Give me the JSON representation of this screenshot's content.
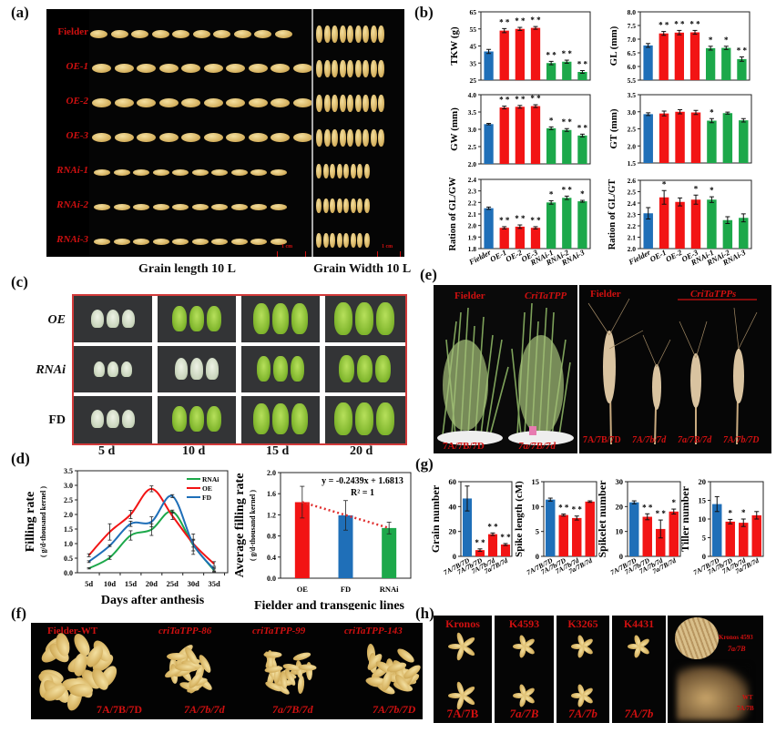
{
  "panels": {
    "a": {
      "label": "(a)",
      "rows": [
        "Fielder",
        "OE-1",
        "OE-2",
        "OE-3",
        "RNAi-1",
        "RNAi-2",
        "RNAi-3"
      ],
      "scale_bar": "1 cm",
      "caption_length": "Grain length  10 L",
      "caption_width": "Grain Width  10 L"
    },
    "b": {
      "label": "(b)"
    },
    "c": {
      "label": "(c)",
      "rows": [
        "OE",
        "RNAi",
        "FD"
      ],
      "columns": [
        "5 d",
        "10 d",
        "15 d",
        "20 d"
      ]
    },
    "d": {
      "label": "(d)"
    },
    "e": {
      "label": "(e)",
      "left_labels": [
        "Fielder",
        "CriTaTPP"
      ],
      "left_genotypes": [
        "7A/7B/7D",
        "7a/7B/7d"
      ],
      "right_labels": [
        "Fielder",
        "CriTaTPPs"
      ],
      "right_genotypes": [
        "7A/7B/7D",
        "7A/7b/7d",
        "7a/7B/7d",
        "7A/7b/7D"
      ]
    },
    "f": {
      "label": "(f)",
      "lines": [
        "Fielder-WT",
        "criTaTPP-86",
        "criTaTPP-99",
        "criTaTPP-143"
      ],
      "genotypes": [
        "7A/7B/7D",
        "7A/7b/7d",
        "7a/7B/7d",
        "7A/7b/7D"
      ]
    },
    "g": {
      "label": "(g)"
    },
    "h": {
      "label": "(h)",
      "lines": [
        "Kronos",
        "K4593",
        "K3265",
        "K4431"
      ],
      "genotypes": [
        "7A/7B",
        "7a/7B",
        "7A/7b",
        "7A/7b"
      ],
      "inset_label_1": "Kronos 4593",
      "inset_label_2": "7a/7B",
      "inset_label_3": "WT",
      "inset_label_4": "7A/7B"
    }
  },
  "colors": {
    "fielder": "#1f6fb8",
    "oe": "#f21414",
    "rnai": "#1ca84a",
    "accent_red": "#d01010"
  },
  "chart_data": [
    {
      "id": "b-TKW",
      "type": "bar",
      "ylabel": "TKW (g)",
      "ylim": [
        25,
        65
      ],
      "yticks": [
        25,
        35,
        45,
        55,
        65
      ],
      "categories": [
        "Fielder",
        "OE-1",
        "OE-2",
        "OE-3",
        "RNAi-1",
        "RNAi-2",
        "RNAi-3"
      ],
      "values": [
        41.8,
        54.0,
        55.0,
        55.6,
        35.0,
        35.8,
        29.8
      ],
      "errors": [
        1.2,
        1.2,
        0.9,
        0.8,
        1.0,
        0.9,
        0.8
      ],
      "significance": [
        "",
        "**",
        "**",
        "**",
        "**",
        "**",
        "**"
      ]
    },
    {
      "id": "b-GL",
      "type": "bar",
      "ylabel": "GL (mm)",
      "ylim": [
        5.5,
        8.0
      ],
      "yticks": [
        5.5,
        6.0,
        6.5,
        7.0,
        7.5,
        8.0
      ],
      "categories": [
        "Fielder",
        "OE-1",
        "OE-2",
        "OE-3",
        "RNAi-1",
        "RNAi-2",
        "RNAi-3"
      ],
      "values": [
        6.77,
        7.21,
        7.24,
        7.25,
        6.67,
        6.68,
        6.27
      ],
      "errors": [
        0.07,
        0.07,
        0.08,
        0.07,
        0.07,
        0.06,
        0.08
      ],
      "significance": [
        "",
        "**",
        "**",
        "**",
        "*",
        "*",
        "**"
      ]
    },
    {
      "id": "b-GW",
      "type": "bar",
      "ylabel": "GW (mm)",
      "ylim": [
        2.0,
        4.0
      ],
      "yticks": [
        2.0,
        2.5,
        3.0,
        3.5,
        4.0
      ],
      "categories": [
        "Fielder",
        "OE-1",
        "OE-2",
        "OE-3",
        "RNAi-1",
        "RNAi-2",
        "RNAi-3"
      ],
      "values": [
        3.15,
        3.63,
        3.65,
        3.67,
        3.03,
        2.98,
        2.82
      ],
      "errors": [
        0.02,
        0.04,
        0.04,
        0.04,
        0.04,
        0.04,
        0.04
      ],
      "significance": [
        "",
        "**",
        "**",
        "**",
        "*",
        "**",
        "**"
      ]
    },
    {
      "id": "b-GT",
      "type": "bar",
      "ylabel": "GT (mm)",
      "ylim": [
        1.5,
        3.5
      ],
      "yticks": [
        1.5,
        2.0,
        2.5,
        3.0,
        3.5
      ],
      "categories": [
        "Fielder",
        "OE-1",
        "OE-2",
        "OE-3",
        "RNAi-1",
        "RNAi-2",
        "RNAi-3"
      ],
      "values": [
        2.93,
        2.95,
        3.0,
        2.98,
        2.74,
        2.96,
        2.75
      ],
      "errors": [
        0.04,
        0.07,
        0.06,
        0.06,
        0.06,
        0.03,
        0.05
      ],
      "significance": [
        "",
        "",
        "",
        "",
        "*",
        "",
        ""
      ]
    },
    {
      "id": "b-GL/GW",
      "type": "bar",
      "ylabel": "Ration of GL/GW",
      "ylim": [
        1.8,
        2.4
      ],
      "yticks": [
        1.8,
        1.9,
        2.0,
        2.1,
        2.2,
        2.3,
        2.4
      ],
      "categories": [
        "Fielder",
        "OE-1",
        "OE-2",
        "OE-3",
        "RNAi-1",
        "RNAi-2",
        "RNAi-3"
      ],
      "values": [
        2.15,
        1.98,
        1.99,
        1.98,
        2.2,
        2.24,
        2.21
      ],
      "errors": [
        0.01,
        0.01,
        0.015,
        0.01,
        0.015,
        0.015,
        0.008
      ],
      "significance": [
        "",
        "**",
        "**",
        "**",
        "*",
        "**",
        "*"
      ]
    },
    {
      "id": "b-GL/GT",
      "type": "bar",
      "ylabel": "Ration of GL/GT",
      "ylim": [
        2.0,
        2.6
      ],
      "yticks": [
        2.0,
        2.1,
        2.2,
        2.3,
        2.4,
        2.5,
        2.6
      ],
      "categories": [
        "Fielder",
        "OE-1",
        "OE-2",
        "OE-3",
        "RNAi-1",
        "RNAi-2",
        "RNAi-3"
      ],
      "values": [
        2.31,
        2.45,
        2.41,
        2.43,
        2.43,
        2.25,
        2.27
      ],
      "errors": [
        0.05,
        0.06,
        0.035,
        0.04,
        0.025,
        0.03,
        0.035
      ],
      "significance": [
        "",
        "*",
        "",
        "*",
        "*",
        "",
        ""
      ]
    },
    {
      "id": "d-filling",
      "type": "line",
      "xlabel": "Days after anthesis",
      "ylabel": "Filling rate",
      "ylabel2": "( g/d·thousand kernel )",
      "ylim": [
        0,
        3.5
      ],
      "yticks": [
        0.0,
        0.5,
        1.0,
        1.5,
        2.0,
        2.5,
        3.0,
        3.5
      ],
      "x": [
        "5d",
        "10d",
        "15d",
        "20d",
        "25d",
        "30d",
        "35d"
      ],
      "legend_position": "upper right",
      "series": [
        {
          "name": "RNAi",
          "values": [
            0.15,
            0.52,
            1.28,
            1.48,
            2.1,
            0.95,
            0.08
          ],
          "errors": [
            0.02,
            0.06,
            0.16,
            0.2,
            0.05,
            0.2,
            0.05
          ]
        },
        {
          "name": "OE",
          "values": [
            0.6,
            1.4,
            2.0,
            2.88,
            1.95,
            1.0,
            0.3
          ],
          "errors": [
            0.05,
            0.28,
            0.14,
            0.1,
            0.12,
            0.12,
            0.08
          ]
        },
        {
          "name": "FD",
          "values": [
            0.38,
            0.93,
            1.68,
            1.75,
            2.63,
            0.98,
            0.12
          ],
          "errors": [
            0.03,
            0.03,
            0.09,
            0.17,
            0.05,
            0.35,
            0.06
          ]
        }
      ]
    },
    {
      "id": "d-average",
      "type": "bar",
      "xlabel": "Fielder and transgenic lines",
      "ylabel": "Average filling rate",
      "ylabel2": "( g/d·thousand kernel )",
      "ylim": [
        0,
        2.0
      ],
      "yticks": [
        0.0,
        0.4,
        0.8,
        1.2,
        1.6,
        2.0
      ],
      "categories": [
        "OE",
        "FD",
        "RNAi"
      ],
      "values": [
        1.44,
        1.19,
        0.95
      ],
      "errors": [
        0.3,
        0.28,
        0.11
      ],
      "trendline": "y = -0.2439x + 1.6813",
      "r_squared": "R² = 1"
    },
    {
      "id": "g-grain",
      "type": "bar",
      "ylabel": "Grain number",
      "ylim": [
        0,
        60
      ],
      "yticks": [
        0,
        20,
        40,
        60
      ],
      "categories": [
        "7A/7B/7D",
        "7A/7b/7D",
        "7A/7b/7d",
        "7a/7B/7d"
      ],
      "values": [
        46.5,
        5.0,
        17.8,
        9.5
      ],
      "errors": [
        10.0,
        1.0,
        1.0,
        0.8
      ],
      "significance": [
        "",
        "**",
        "**",
        "**"
      ]
    },
    {
      "id": "g-spike",
      "type": "bar",
      "ylabel": "Spike length (cM)",
      "ylim": [
        0,
        15
      ],
      "yticks": [
        0,
        5,
        10,
        15
      ],
      "categories": [
        "7A/7B/7D",
        "7A/7b/7D",
        "7A/7b/7d",
        "7a/7B/7d"
      ],
      "values": [
        11.4,
        8.3,
        7.7,
        11.0
      ],
      "errors": [
        0.3,
        0.2,
        0.4,
        0.15
      ],
      "significance": [
        "",
        "**",
        "**",
        ""
      ]
    },
    {
      "id": "g-spikelet",
      "type": "bar",
      "ylabel": "Spikelet number",
      "ylim": [
        0,
        30
      ],
      "yticks": [
        0,
        10,
        20,
        30
      ],
      "categories": [
        "7A/7B/7D",
        "7A/7b/7D",
        "7A/7b/7d",
        "7a/7B/7d"
      ],
      "values": [
        21.7,
        15.9,
        11.0,
        18.0
      ],
      "errors": [
        0.6,
        1.2,
        3.6,
        1.0
      ],
      "significance": [
        "",
        "**",
        "**",
        "*"
      ]
    },
    {
      "id": "g-tiller",
      "type": "bar",
      "ylabel": "Tiller number",
      "ylim": [
        0,
        20
      ],
      "yticks": [
        0,
        5,
        10,
        15,
        20
      ],
      "categories": [
        "7A/7B/7D",
        "7A/7b/7D",
        "7A/7b/7d",
        "7a/7B/7d"
      ],
      "values": [
        14.0,
        9.3,
        9.0,
        11.0
      ],
      "errors": [
        2.0,
        0.6,
        1.0,
        1.0
      ],
      "significance": [
        "",
        "*",
        "*",
        ""
      ]
    }
  ]
}
